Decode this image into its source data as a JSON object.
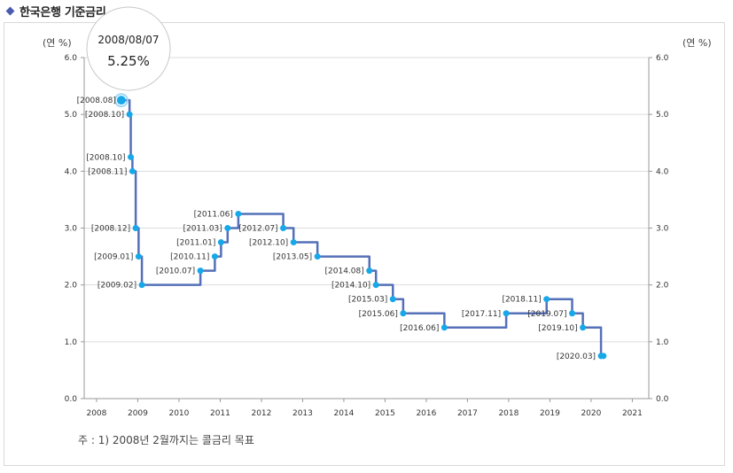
{
  "header": {
    "title": "한국은행 기준금리"
  },
  "footnote": "주 : 1) 2008년 2월까지는 콜금리 목표",
  "tooltip": {
    "date": "2008/08/07",
    "value": "5.25%"
  },
  "colors": {
    "line": "#5470b8",
    "point": "#16a8e8",
    "grid": "#dddddd",
    "accent": "#4a5cb0"
  },
  "chart_data": {
    "type": "line",
    "step": true,
    "title": "한국은행 기준금리",
    "y_unit_left": "(연 %)",
    "y_unit_right": "(연 %)",
    "ylim": [
      0,
      6
    ],
    "yticks": [
      "0.0",
      "1.0",
      "2.0",
      "3.0",
      "4.0",
      "5.0",
      "6.0"
    ],
    "xlim": [
      2007.7,
      2021.4
    ],
    "xticks": [
      "2008",
      "2009",
      "2010",
      "2011",
      "2012",
      "2013",
      "2014",
      "2015",
      "2016",
      "2017",
      "2018",
      "2019",
      "2020",
      "2021"
    ],
    "series": [
      {
        "name": "기준금리",
        "points": [
          {
            "x": 2008.6,
            "y": 5.25,
            "label": "[2008.08]"
          },
          {
            "x": 2008.8,
            "y": 5.0,
            "label": "[2008.10]"
          },
          {
            "x": 2008.83,
            "y": 4.25,
            "label": "[2008.10]"
          },
          {
            "x": 2008.87,
            "y": 4.0,
            "label": "[2008.11]"
          },
          {
            "x": 2008.95,
            "y": 3.0,
            "label": "[2008.12]"
          },
          {
            "x": 2009.02,
            "y": 2.5,
            "label": "[2009.01]"
          },
          {
            "x": 2009.1,
            "y": 2.0,
            "label": "[2009.02]"
          },
          {
            "x": 2010.52,
            "y": 2.25,
            "label": "[2010.07]"
          },
          {
            "x": 2010.87,
            "y": 2.5,
            "label": "[2010.11]"
          },
          {
            "x": 2011.02,
            "y": 2.75,
            "label": "[2011.01]"
          },
          {
            "x": 2011.18,
            "y": 3.0,
            "label": "[2011.03]"
          },
          {
            "x": 2011.44,
            "y": 3.25,
            "label": "[2011.06]"
          },
          {
            "x": 2012.53,
            "y": 3.0,
            "label": "[2012.07]"
          },
          {
            "x": 2012.78,
            "y": 2.75,
            "label": "[2012.10]"
          },
          {
            "x": 2013.36,
            "y": 2.5,
            "label": "[2013.05]"
          },
          {
            "x": 2014.62,
            "y": 2.25,
            "label": "[2014.08]"
          },
          {
            "x": 2014.78,
            "y": 2.0,
            "label": "[2014.10]"
          },
          {
            "x": 2015.19,
            "y": 1.75,
            "label": "[2015.03]"
          },
          {
            "x": 2015.44,
            "y": 1.5,
            "label": "[2015.06]"
          },
          {
            "x": 2016.44,
            "y": 1.25,
            "label": "[2016.06]"
          },
          {
            "x": 2017.94,
            "y": 1.5,
            "label": "[2017.11]"
          },
          {
            "x": 2018.92,
            "y": 1.75,
            "label": "[2018.11]"
          },
          {
            "x": 2019.54,
            "y": 1.5,
            "label": "[2019.07]"
          },
          {
            "x": 2019.8,
            "y": 1.25,
            "label": "[2019.10]"
          },
          {
            "x": 2020.24,
            "y": 0.75,
            "label": "[2020.03]"
          },
          {
            "x": 2020.3,
            "y": 0.75,
            "label": ""
          }
        ]
      }
    ]
  }
}
